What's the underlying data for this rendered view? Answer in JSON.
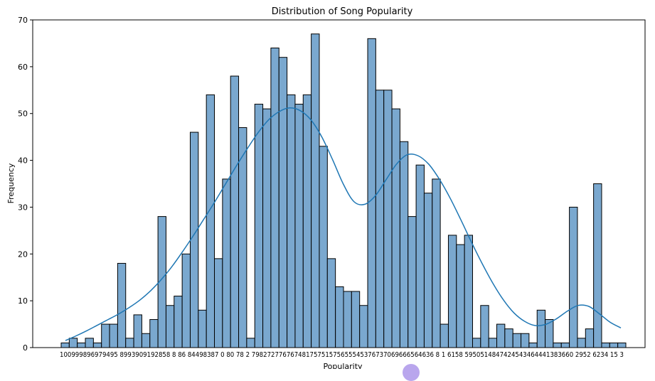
{
  "chart_data": {
    "type": "bar",
    "title": "Distribution of Song Popularity",
    "xlabel": "Popularity",
    "ylabel": "Frequency",
    "ylim": [
      0,
      70
    ],
    "yticks": [
      0,
      10,
      20,
      30,
      40,
      50,
      60,
      70
    ],
    "grid": false,
    "legend": false,
    "bar_color": "#7aa8cf",
    "bar_edge_color": "#000000",
    "kde_color": "#1f77b4",
    "x_tick_text": "100999896979495 8993909192858 8 86 84498387 0 80 78 2 79827277676748175751575655545376737069666564636 8 1 6158 5950514847424543464441383660 2952 6234 15 3",
    "values": [
      1,
      2,
      1,
      2,
      1,
      5,
      5,
      18,
      2,
      7,
      3,
      6,
      28,
      9,
      11,
      20,
      46,
      8,
      54,
      19,
      36,
      58,
      47,
      2,
      52,
      51,
      64,
      62,
      54,
      52,
      54,
      67,
      43,
      19,
      13,
      12,
      12,
      9,
      66,
      55,
      55,
      51,
      44,
      28,
      39,
      33,
      36,
      5,
      24,
      22,
      24,
      2,
      9,
      2,
      5,
      4,
      3,
      3,
      1,
      8,
      6,
      1,
      1,
      30,
      2,
      4,
      35,
      1,
      1,
      1
    ],
    "kde": [
      1.5,
      2.5,
      3.6,
      4.8,
      6.0,
      7.2,
      8.6,
      10.2,
      12.2,
      14.6,
      17.4,
      20.6,
      24.0,
      27.6,
      31.2,
      35.0,
      38.8,
      42.4,
      45.8,
      48.6,
      50.4,
      51.2,
      50.6,
      48.6,
      45.0,
      40.2,
      35.0,
      31.2,
      30.6,
      32.4,
      35.8,
      39.2,
      41.2,
      41.0,
      39.2,
      36.0,
      32.0,
      27.4,
      22.6,
      18.0,
      13.8,
      10.2,
      7.4,
      5.6,
      4.7,
      5.0,
      6.2,
      7.8,
      9.0,
      8.8,
      7.2,
      5.4,
      4.2
    ]
  }
}
